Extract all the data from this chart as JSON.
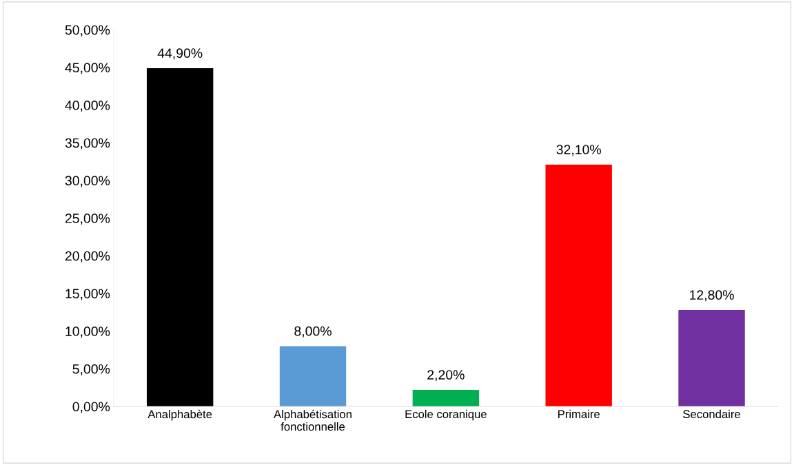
{
  "chart_data": {
    "type": "bar",
    "categories": [
      "Analphabète",
      "Alphabétisation\nfonctionnelle",
      "Ecole coranique",
      "Primaire",
      "Secondaire"
    ],
    "values": [
      44.9,
      8.0,
      2.2,
      32.1,
      12.8
    ],
    "colors": [
      "#000000",
      "#5b9bd5",
      "#00b050",
      "#ff0000",
      "#7030a0"
    ],
    "value_labels": [
      "44,90%",
      "8,00%",
      "2,20%",
      "32,10%",
      "12,80%"
    ],
    "ylim": [
      0,
      50
    ],
    "yticks": [
      {
        "value": 0,
        "label": "0,00%"
      },
      {
        "value": 5,
        "label": "5,00%"
      },
      {
        "value": 10,
        "label": "10,00%"
      },
      {
        "value": 15,
        "label": "15,00%"
      },
      {
        "value": 20,
        "label": "20,00%"
      },
      {
        "value": 25,
        "label": "25,00%"
      },
      {
        "value": 30,
        "label": "30,00%"
      },
      {
        "value": 35,
        "label": "35,00%"
      },
      {
        "value": 40,
        "label": "40,00%"
      },
      {
        "value": 45,
        "label": "45,00%"
      },
      {
        "value": 50,
        "label": "50,00%"
      }
    ],
    "grid": false,
    "legend": false
  }
}
